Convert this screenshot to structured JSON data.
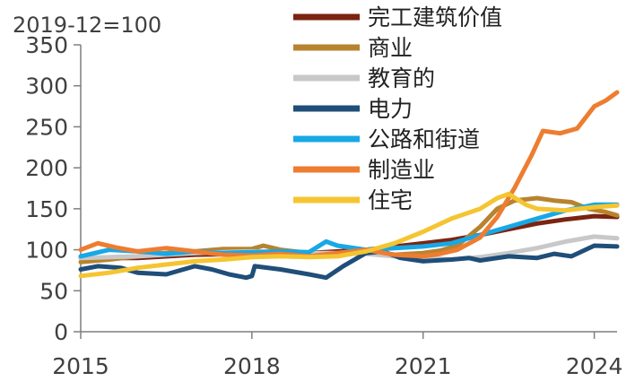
{
  "chart_data": {
    "type": "line",
    "unit_label": "2019-12=100",
    "ylim": [
      0,
      350
    ],
    "xlim": [
      2015,
      2024.4
    ],
    "y_ticks": [
      "0",
      "50",
      "100",
      "150",
      "200",
      "250",
      "300",
      "350"
    ],
    "x_ticks": [
      "2015",
      "2018",
      "2021",
      "2024"
    ],
    "series": [
      {
        "name": "完工建筑价值",
        "color": "#7b2410",
        "points": [
          [
            2015,
            90
          ],
          [
            2016,
            90
          ],
          [
            2017,
            94
          ],
          [
            2018,
            95
          ],
          [
            2019,
            96
          ],
          [
            2020,
            100
          ],
          [
            2021,
            108
          ],
          [
            2021.5,
            112
          ],
          [
            2022,
            118
          ],
          [
            2022.5,
            125
          ],
          [
            2023,
            132
          ],
          [
            2023.5,
            137
          ],
          [
            2024,
            141
          ],
          [
            2024.4,
            140
          ]
        ]
      },
      {
        "name": "商业",
        "color": "#b8832f",
        "points": [
          [
            2015,
            85
          ],
          [
            2015.5,
            88
          ],
          [
            2016,
            92
          ],
          [
            2016.5,
            96
          ],
          [
            2017,
            98
          ],
          [
            2017.5,
            101
          ],
          [
            2018,
            101
          ],
          [
            2018.2,
            105
          ],
          [
            2018.5,
            100
          ],
          [
            2019,
            96
          ],
          [
            2019.5,
            95
          ],
          [
            2020,
            98
          ],
          [
            2020.5,
            94
          ],
          [
            2021,
            96
          ],
          [
            2021.3,
            99
          ],
          [
            2021.6,
            105
          ],
          [
            2022,
            128
          ],
          [
            2022.3,
            150
          ],
          [
            2022.6,
            160
          ],
          [
            2023,
            163
          ],
          [
            2023.3,
            160
          ],
          [
            2023.6,
            158
          ],
          [
            2023.9,
            150
          ],
          [
            2024.2,
            146
          ],
          [
            2024.4,
            142
          ]
        ]
      },
      {
        "name": "教育的",
        "color": "#c8c8c8",
        "points": [
          [
            2015,
            90
          ],
          [
            2016,
            92
          ],
          [
            2017,
            96
          ],
          [
            2018,
            98
          ],
          [
            2019,
            96
          ],
          [
            2019.5,
            96
          ],
          [
            2020,
            95
          ],
          [
            2020.5,
            92
          ],
          [
            2021,
            90
          ],
          [
            2021.5,
            88
          ],
          [
            2022,
            91
          ],
          [
            2022.5,
            96
          ],
          [
            2023,
            102
          ],
          [
            2023.5,
            110
          ],
          [
            2024,
            116
          ],
          [
            2024.4,
            114
          ]
        ]
      },
      {
        "name": "电力",
        "color": "#1f4e79",
        "points": [
          [
            2015,
            76
          ],
          [
            2015.3,
            80
          ],
          [
            2015.7,
            78
          ],
          [
            2016,
            72
          ],
          [
            2016.5,
            70
          ],
          [
            2017,
            80
          ],
          [
            2017.3,
            76
          ],
          [
            2017.6,
            70
          ],
          [
            2017.9,
            66
          ],
          [
            2018,
            68
          ],
          [
            2018.05,
            80
          ],
          [
            2018.5,
            76
          ],
          [
            2019,
            70
          ],
          [
            2019.3,
            66
          ],
          [
            2019.6,
            80
          ],
          [
            2020,
            96
          ],
          [
            2020.3,
            98
          ],
          [
            2020.6,
            90
          ],
          [
            2021,
            86
          ],
          [
            2021.5,
            88
          ],
          [
            2021.8,
            90
          ],
          [
            2022,
            87
          ],
          [
            2022.5,
            92
          ],
          [
            2023,
            90
          ],
          [
            2023.3,
            95
          ],
          [
            2023.6,
            92
          ],
          [
            2024,
            105
          ],
          [
            2024.4,
            104
          ]
        ]
      },
      {
        "name": "公路和街道",
        "color": "#17a8e6",
        "points": [
          [
            2015,
            92
          ],
          [
            2015.5,
            100
          ],
          [
            2016,
            98
          ],
          [
            2016.5,
            95
          ],
          [
            2017,
            98
          ],
          [
            2017.5,
            96
          ],
          [
            2018,
            97
          ],
          [
            2018.5,
            98
          ],
          [
            2019,
            97
          ],
          [
            2019.3,
            110
          ],
          [
            2019.5,
            105
          ],
          [
            2020,
            100
          ],
          [
            2020.5,
            102
          ],
          [
            2021,
            104
          ],
          [
            2021.5,
            108
          ],
          [
            2022,
            118
          ],
          [
            2022.5,
            128
          ],
          [
            2023,
            138
          ],
          [
            2023.5,
            148
          ],
          [
            2024,
            155
          ],
          [
            2024.4,
            155
          ]
        ]
      },
      {
        "name": "制造业",
        "color": "#ed7d31",
        "points": [
          [
            2015,
            100
          ],
          [
            2015.3,
            108
          ],
          [
            2015.6,
            103
          ],
          [
            2016,
            98
          ],
          [
            2016.5,
            102
          ],
          [
            2017,
            98
          ],
          [
            2017.5,
            94
          ],
          [
            2018,
            93
          ],
          [
            2018.5,
            95
          ],
          [
            2019,
            92
          ],
          [
            2019.5,
            96
          ],
          [
            2020,
            100
          ],
          [
            2020.5,
            94
          ],
          [
            2021,
            92
          ],
          [
            2021.3,
            95
          ],
          [
            2021.6,
            100
          ],
          [
            2022,
            115
          ],
          [
            2022.3,
            140
          ],
          [
            2022.6,
            175
          ],
          [
            2022.9,
            215
          ],
          [
            2023.1,
            245
          ],
          [
            2023.4,
            242
          ],
          [
            2023.7,
            248
          ],
          [
            2024,
            275
          ],
          [
            2024.2,
            282
          ],
          [
            2024.4,
            292
          ]
        ]
      },
      {
        "name": "住宅",
        "color": "#f5c531",
        "points": [
          [
            2015,
            68
          ],
          [
            2015.5,
            72
          ],
          [
            2016,
            78
          ],
          [
            2016.5,
            82
          ],
          [
            2017,
            86
          ],
          [
            2017.5,
            88
          ],
          [
            2018,
            91
          ],
          [
            2018.5,
            92
          ],
          [
            2019,
            91
          ],
          [
            2019.5,
            92
          ],
          [
            2020,
            98
          ],
          [
            2020.5,
            108
          ],
          [
            2021,
            122
          ],
          [
            2021.5,
            138
          ],
          [
            2022,
            150
          ],
          [
            2022.3,
            163
          ],
          [
            2022.5,
            168
          ],
          [
            2022.8,
            155
          ],
          [
            2023,
            150
          ],
          [
            2023.5,
            148
          ],
          [
            2024,
            152
          ],
          [
            2024.4,
            154
          ]
        ]
      }
    ]
  }
}
